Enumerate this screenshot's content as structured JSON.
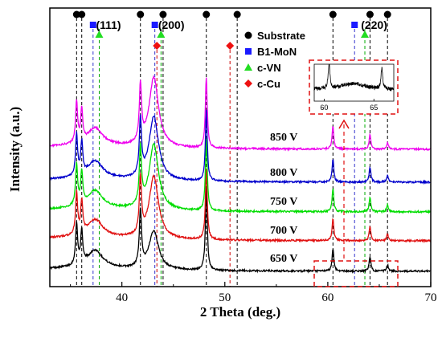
{
  "chart_data": {
    "type": "line",
    "title": "",
    "xlabel": "2 Theta (deg.)",
    "ylabel": "Intensity (a.u.)",
    "xlim": [
      33,
      70
    ],
    "xticks": [
      40,
      50,
      60,
      70
    ],
    "grid": false,
    "legend_position": "top-right",
    "legend": [
      {
        "name": "Substrate",
        "marker": "circle",
        "color": "#000000"
      },
      {
        "name": "B1-MoN",
        "marker": "square",
        "color": "#1a1aff"
      },
      {
        "name": "c-VN",
        "marker": "triangle",
        "color": "#22dd22"
      },
      {
        "name": "c-Cu",
        "marker": "diamond",
        "color": "#ee1111"
      }
    ],
    "reflections": [
      {
        "phase": "Substrate",
        "positions": [
          35.6,
          36.1,
          41.8,
          44.0,
          48.2,
          51.2,
          60.5,
          64.1,
          65.8
        ]
      },
      {
        "phase": "B1-MoN",
        "positions": [
          37.2,
          43.2,
          62.6
        ]
      },
      {
        "phase": "c-VN",
        "positions": [
          37.8,
          43.8,
          63.6
        ]
      },
      {
        "phase": "c-Cu",
        "positions": [
          43.4,
          50.5
        ]
      }
    ],
    "miller_labels": [
      {
        "text": "(111)",
        "x": 38.7
      },
      {
        "text": "(200)",
        "x": 44.8
      },
      {
        "text": "(220)",
        "x": 64.5
      }
    ],
    "series": [
      {
        "name": "650 V",
        "color": "#000000",
        "offset": 0
      },
      {
        "name": "700 V",
        "color": "#e01010",
        "offset": 1
      },
      {
        "name": "750 V",
        "color": "#00dd00",
        "offset": 2
      },
      {
        "name": "800 V",
        "color": "#0000cc",
        "offset": 3
      },
      {
        "name": "850 V",
        "color": "#ee00ee",
        "offset": 4
      }
    ],
    "inset": {
      "xticks": [
        60,
        65
      ],
      "xlim": [
        59,
        67
      ]
    }
  }
}
